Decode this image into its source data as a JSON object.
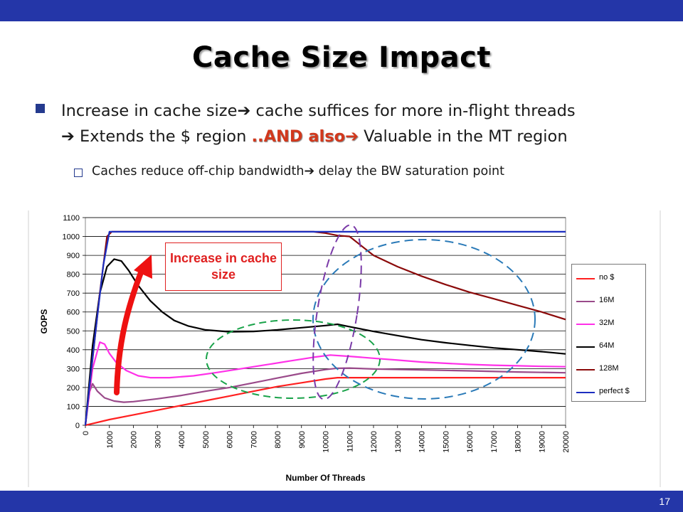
{
  "slide": {
    "title": "Cache Size Impact",
    "page_number": "17",
    "bullet": {
      "part1": "Increase in cache size",
      "part2": " cache suffices for more in-flight threads",
      "part3": " Extends the $ region ",
      "and_also": "..AND also",
      "part4": " Valuable in the MT region"
    },
    "sub_bullet": {
      "part1": "Caches reduce off-chip bandwidth",
      "part2": " delay the BW saturation point"
    },
    "annotation": "Increase in cache size",
    "colors": {
      "bar": "#2436a8",
      "and_also": "#d2381c",
      "annotation": "#e02020",
      "arrow": "#ee1111"
    }
  },
  "chart_data": {
    "type": "line",
    "title": "",
    "xlabel": "Number Of Threads",
    "ylabel": "GOPS",
    "xlim": [
      0,
      20000
    ],
    "ylim": [
      0,
      1100
    ],
    "x_ticks": [
      0,
      1000,
      2000,
      3000,
      4000,
      5000,
      6000,
      7000,
      8000,
      9000,
      10000,
      11000,
      12000,
      13000,
      14000,
      15000,
      16000,
      17000,
      18000,
      19000,
      20000
    ],
    "y_ticks": [
      0,
      100,
      200,
      300,
      400,
      500,
      600,
      700,
      800,
      900,
      1000,
      1100
    ],
    "grid": true,
    "legend_position": "right",
    "series": [
      {
        "name": "no $",
        "color": "#ff2020",
        "points": [
          [
            0,
            0
          ],
          [
            1000,
            30
          ],
          [
            2000,
            55
          ],
          [
            3000,
            80
          ],
          [
            4000,
            105
          ],
          [
            5000,
            130
          ],
          [
            6000,
            155
          ],
          [
            7000,
            180
          ],
          [
            8000,
            205
          ],
          [
            9000,
            225
          ],
          [
            10000,
            245
          ],
          [
            10500,
            252
          ],
          [
            11000,
            252
          ],
          [
            12000,
            252
          ],
          [
            14000,
            252
          ],
          [
            16000,
            252
          ],
          [
            18000,
            252
          ],
          [
            20000,
            252
          ]
        ]
      },
      {
        "name": "16M",
        "color": "#9a4a8a",
        "points": [
          [
            0,
            0
          ],
          [
            150,
            170
          ],
          [
            300,
            220
          ],
          [
            500,
            180
          ],
          [
            800,
            145
          ],
          [
            1200,
            128
          ],
          [
            1600,
            122
          ],
          [
            2000,
            125
          ],
          [
            3000,
            140
          ],
          [
            4000,
            158
          ],
          [
            5000,
            180
          ],
          [
            6000,
            200
          ],
          [
            7000,
            225
          ],
          [
            8000,
            250
          ],
          [
            9000,
            275
          ],
          [
            10000,
            295
          ],
          [
            10500,
            302
          ],
          [
            11000,
            303
          ],
          [
            12000,
            298
          ],
          [
            14000,
            293
          ],
          [
            16000,
            288
          ],
          [
            18000,
            282
          ],
          [
            20000,
            278
          ]
        ]
      },
      {
        "name": "32M",
        "color": "#ff30e8",
        "points": [
          [
            0,
            0
          ],
          [
            300,
            300
          ],
          [
            600,
            440
          ],
          [
            800,
            430
          ],
          [
            1000,
            380
          ],
          [
            1300,
            330
          ],
          [
            1700,
            290
          ],
          [
            2200,
            262
          ],
          [
            2700,
            252
          ],
          [
            3500,
            252
          ],
          [
            4500,
            262
          ],
          [
            5500,
            280
          ],
          [
            6500,
            300
          ],
          [
            7500,
            320
          ],
          [
            8500,
            340
          ],
          [
            9500,
            360
          ],
          [
            10200,
            372
          ],
          [
            11000,
            365
          ],
          [
            12000,
            355
          ],
          [
            13000,
            345
          ],
          [
            14000,
            335
          ],
          [
            15000,
            328
          ],
          [
            16000,
            322
          ],
          [
            17000,
            318
          ],
          [
            18000,
            315
          ],
          [
            19000,
            312
          ],
          [
            20000,
            310
          ]
        ]
      },
      {
        "name": "64M",
        "color": "#000000",
        "points": [
          [
            0,
            0
          ],
          [
            300,
            420
          ],
          [
            600,
            700
          ],
          [
            900,
            840
          ],
          [
            1200,
            880
          ],
          [
            1500,
            870
          ],
          [
            1800,
            820
          ],
          [
            2200,
            740
          ],
          [
            2700,
            660
          ],
          [
            3200,
            600
          ],
          [
            3700,
            555
          ],
          [
            4300,
            525
          ],
          [
            5000,
            505
          ],
          [
            6000,
            495
          ],
          [
            7000,
            497
          ],
          [
            8000,
            505
          ],
          [
            9000,
            517
          ],
          [
            10000,
            528
          ],
          [
            10500,
            535
          ],
          [
            11000,
            522
          ],
          [
            12000,
            497
          ],
          [
            13000,
            475
          ],
          [
            14000,
            453
          ],
          [
            15000,
            437
          ],
          [
            16000,
            423
          ],
          [
            17000,
            410
          ],
          [
            18000,
            400
          ],
          [
            19000,
            390
          ],
          [
            20000,
            378
          ]
        ]
      },
      {
        "name": "128M",
        "color": "#8b0a0a",
        "points": [
          [
            0,
            0
          ],
          [
            300,
            350
          ],
          [
            600,
            700
          ],
          [
            900,
            1000
          ],
          [
            1100,
            1025
          ],
          [
            2000,
            1025
          ],
          [
            5000,
            1025
          ],
          [
            8000,
            1025
          ],
          [
            9500,
            1025
          ],
          [
            10000,
            1018
          ],
          [
            10500,
            1005
          ],
          [
            11000,
            1000
          ],
          [
            11500,
            950
          ],
          [
            12000,
            900
          ],
          [
            13000,
            840
          ],
          [
            14000,
            790
          ],
          [
            15000,
            745
          ],
          [
            16000,
            705
          ],
          [
            17000,
            670
          ],
          [
            18000,
            635
          ],
          [
            19000,
            600
          ],
          [
            20000,
            560
          ]
        ]
      },
      {
        "name": "perfect $",
        "color": "#1c2ec0",
        "points": [
          [
            0,
            0
          ],
          [
            250,
            300
          ],
          [
            500,
            580
          ],
          [
            750,
            850
          ],
          [
            1000,
            1025
          ],
          [
            2000,
            1025
          ],
          [
            5000,
            1025
          ],
          [
            10000,
            1025
          ],
          [
            15000,
            1025
          ],
          [
            20000,
            1025
          ]
        ]
      }
    ],
    "annotations": [
      "Increase in cache size"
    ]
  }
}
